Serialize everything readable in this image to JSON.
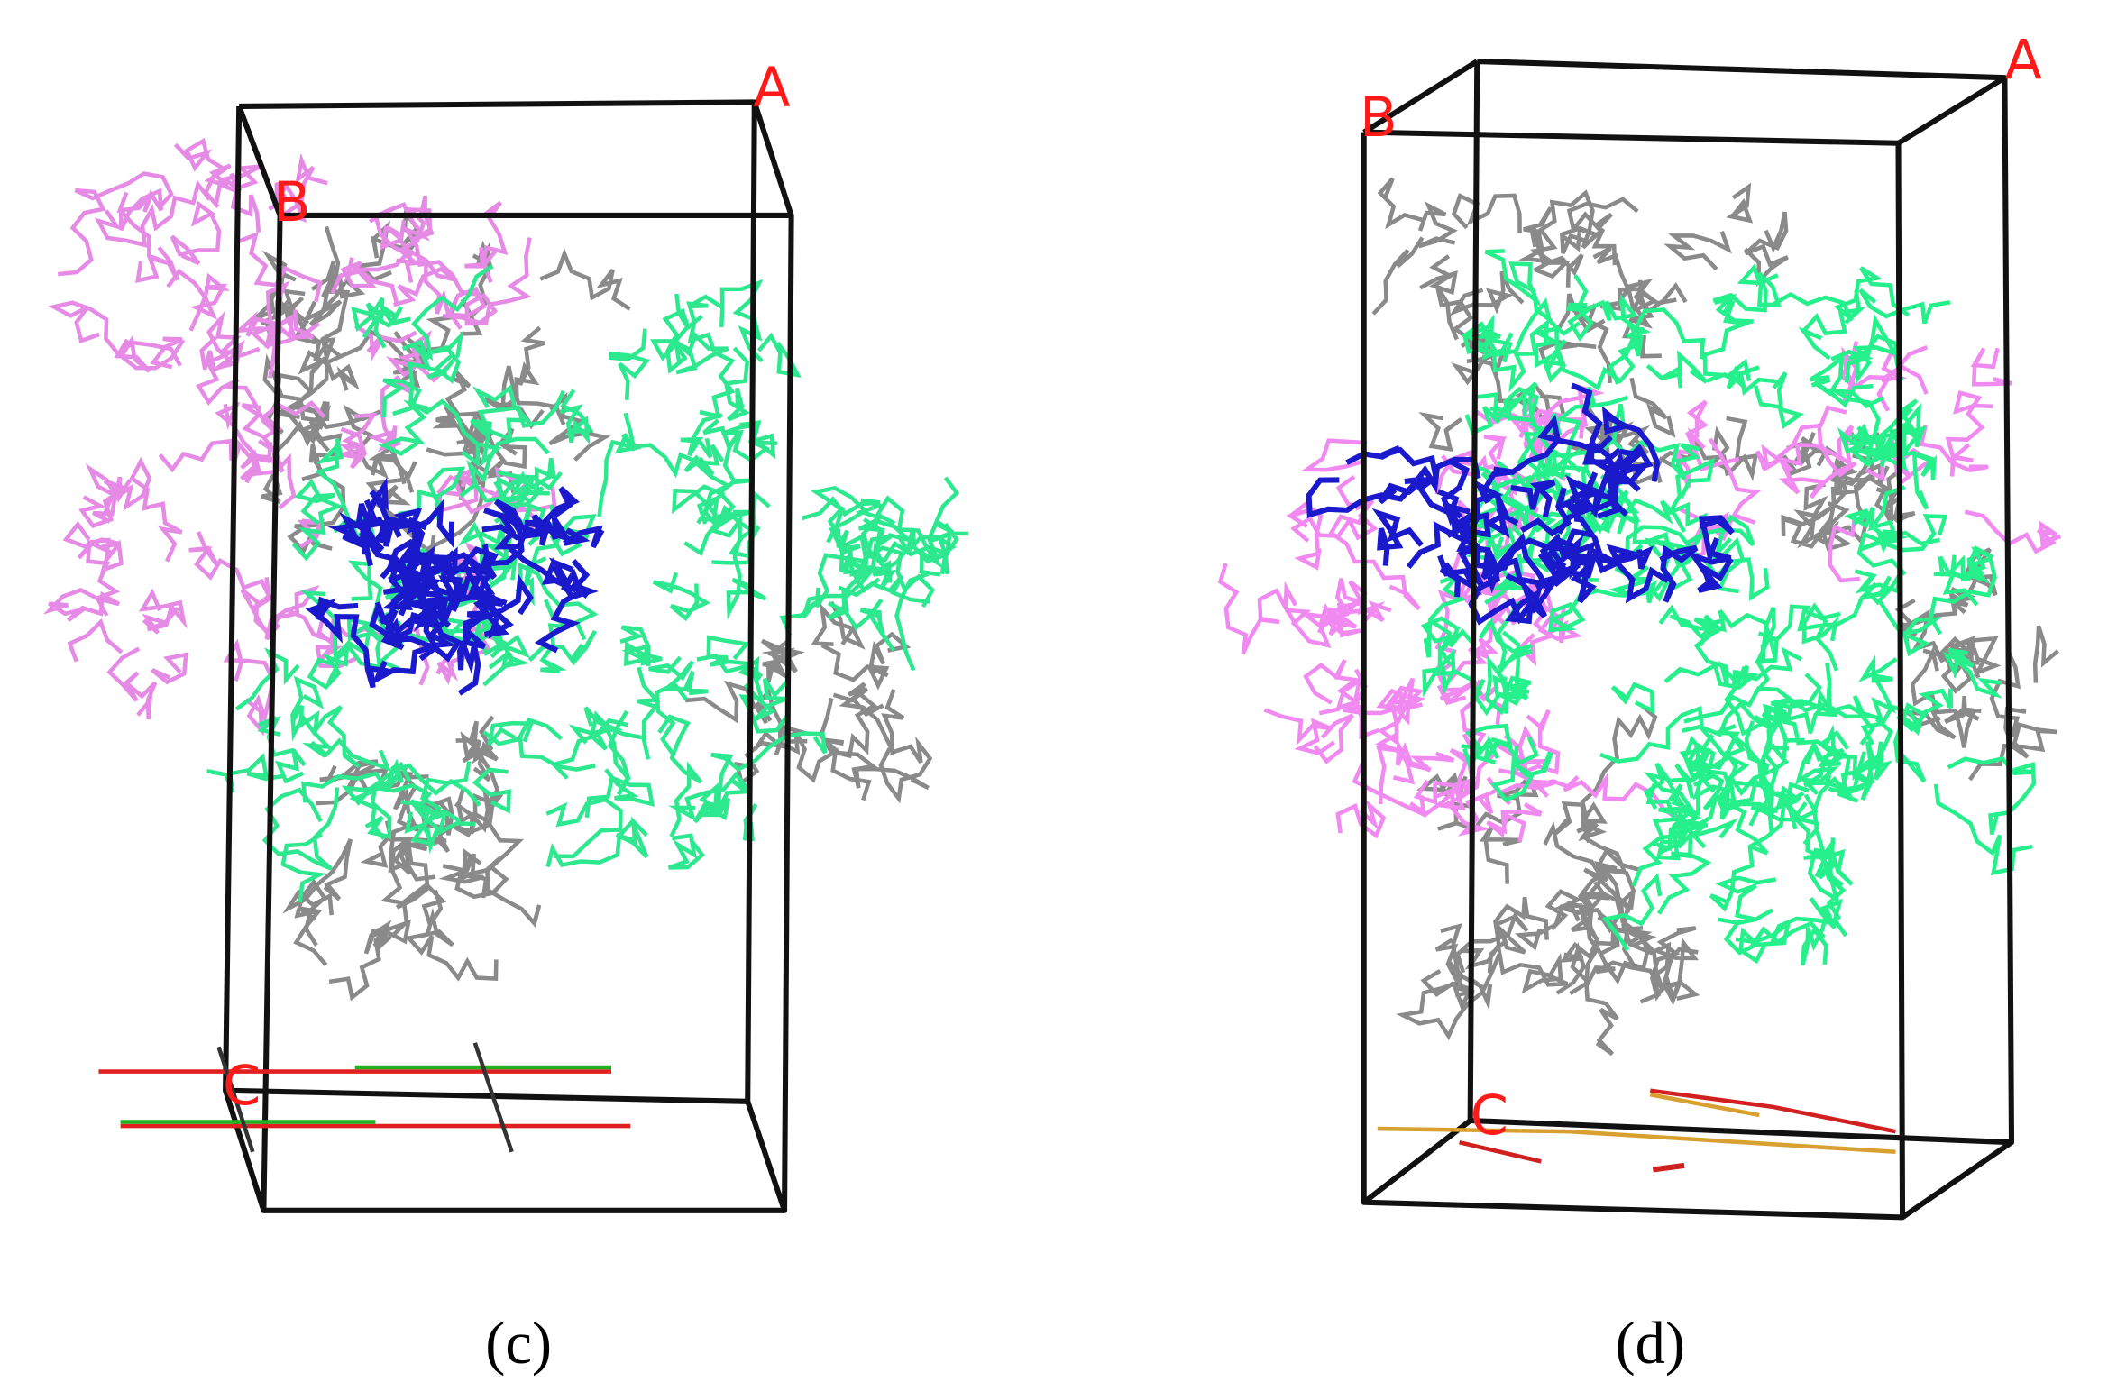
{
  "panels": [
    {
      "caption": "(c)",
      "labels": {
        "a": "A",
        "b": "B",
        "c": "C"
      }
    },
    {
      "caption": "(d)",
      "labels": {
        "a": "A",
        "b": "B",
        "c": "C"
      }
    }
  ]
}
